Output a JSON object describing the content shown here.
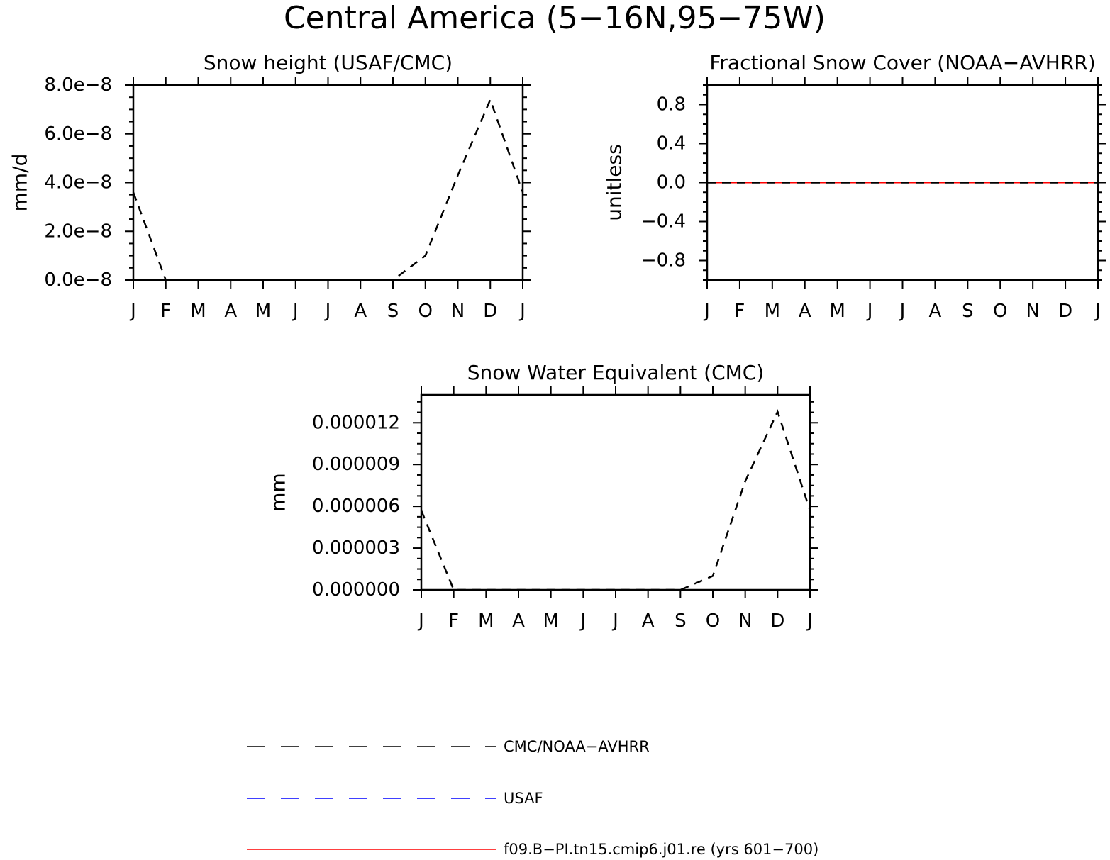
{
  "figure": {
    "title": "Central America (5−16N,95−75W)"
  },
  "chart_data": [
    {
      "type": "line",
      "title": "Snow height (USAF/CMC)",
      "ylabel": "mm/d",
      "xlabel": "",
      "x": [
        "J",
        "F",
        "M",
        "A",
        "M",
        "J",
        "J",
        "A",
        "S",
        "O",
        "N",
        "D",
        "J"
      ],
      "ylim": [
        0,
        8e-08
      ],
      "yticks": [
        0,
        2e-08,
        4e-08,
        6e-08,
        8e-08
      ],
      "ytick_labels": [
        "0.0e−8",
        "2.0e−8",
        "4.0e−8",
        "6.0e−8",
        "8.0e−8"
      ],
      "series": [
        {
          "name": "CMC/NOAA-AVHRR",
          "color": "#000000",
          "dash": "dashed",
          "values": [
            3.6e-08,
            0,
            0,
            0,
            0,
            0,
            0,
            0,
            0,
            1e-08,
            4.3e-08,
            7.4e-08,
            3.6e-08
          ]
        },
        {
          "name": "f09.B-PI.tn15.cmip6.j01.re (yrs 601−700)",
          "color": "#ff0000",
          "dash": "solid",
          "values": [
            0,
            0,
            0,
            0,
            0,
            0,
            0,
            0,
            0,
            0,
            0,
            0,
            0
          ]
        }
      ]
    },
    {
      "type": "line",
      "title": "Fractional Snow Cover (NOAA−AVHRR)",
      "ylabel": "unitless",
      "xlabel": "",
      "x": [
        "J",
        "F",
        "M",
        "A",
        "M",
        "J",
        "J",
        "A",
        "S",
        "O",
        "N",
        "D",
        "J"
      ],
      "ylim": [
        -1,
        1
      ],
      "yticks": [
        -0.8,
        -0.4,
        0,
        0.4,
        0.8
      ],
      "ytick_labels": [
        "−0.8",
        "−0.4",
        "0.0",
        "0.4",
        "0.8"
      ],
      "series": [
        {
          "name": "f09.B-PI.tn15.cmip6.j01.re (yrs 601−700)",
          "color": "#ff0000",
          "dash": "solid",
          "values": [
            0,
            0,
            0,
            0,
            0,
            0,
            0,
            0,
            0,
            0,
            0,
            0,
            0
          ]
        },
        {
          "name": "CMC/NOAA-AVHRR",
          "color": "#000000",
          "dash": "dashed",
          "values": [
            0,
            0,
            0,
            0,
            0,
            0,
            0,
            0,
            0,
            0,
            0,
            0,
            0
          ]
        }
      ]
    },
    {
      "type": "line",
      "title": "Snow Water Equivalent (CMC)",
      "ylabel": "mm",
      "xlabel": "",
      "x": [
        "J",
        "F",
        "M",
        "A",
        "M",
        "J",
        "J",
        "A",
        "S",
        "O",
        "N",
        "D",
        "J"
      ],
      "ylim": [
        0,
        1.4e-05
      ],
      "yticks": [
        0,
        3e-06,
        6e-06,
        9e-06,
        1.2e-05
      ],
      "ytick_labels": [
        "0.000000",
        "0.000003",
        "0.000006",
        "0.000009",
        "0.000012"
      ],
      "series": [
        {
          "name": "CMC/NOAA-AVHRR",
          "color": "#000000",
          "dash": "dashed",
          "values": [
            5.7e-06,
            0,
            0,
            0,
            0,
            0,
            0,
            0,
            0,
            1e-06,
            7.8e-06,
            1.28e-05,
            5.7e-06
          ]
        },
        {
          "name": "f09.B-PI.tn15.cmip6.j01.re (yrs 601−700)",
          "color": "#ff0000",
          "dash": "solid",
          "values": [
            0,
            0,
            0,
            0,
            0,
            0,
            0,
            0,
            0,
            0,
            0,
            0,
            0
          ]
        }
      ]
    }
  ],
  "legend": {
    "placement": "bottom-center",
    "items": [
      {
        "label": "CMC/NOAA−AVHRR",
        "color": "#000000",
        "dash": "dashed"
      },
      {
        "label": "USAF",
        "color": "#0000ff",
        "dash": "dashed"
      },
      {
        "label": "f09.B−PI.tn15.cmip6.j01.re (yrs 601−700)",
        "color": "#ff0000",
        "dash": "solid"
      }
    ]
  }
}
